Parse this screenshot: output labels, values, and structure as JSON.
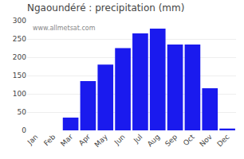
{
  "chart_data": {
    "type": "bar",
    "title": "Ngaoundéré : precipitation (mm)",
    "categories": [
      "Jan",
      "Feb",
      "Mar",
      "Apr",
      "May",
      "Jun",
      "Jul",
      "Aug",
      "Sep",
      "Oct",
      "Nov",
      "Dec"
    ],
    "values": [
      0,
      0,
      35,
      135,
      180,
      225,
      265,
      278,
      235,
      235,
      115,
      5
    ],
    "color": "#1a1aee",
    "ylim": [
      0,
      300
    ],
    "yticks": [
      0,
      50,
      100,
      150,
      200,
      250,
      300
    ],
    "grid": true,
    "annotations": [
      "www.allmetsat.com"
    ]
  }
}
